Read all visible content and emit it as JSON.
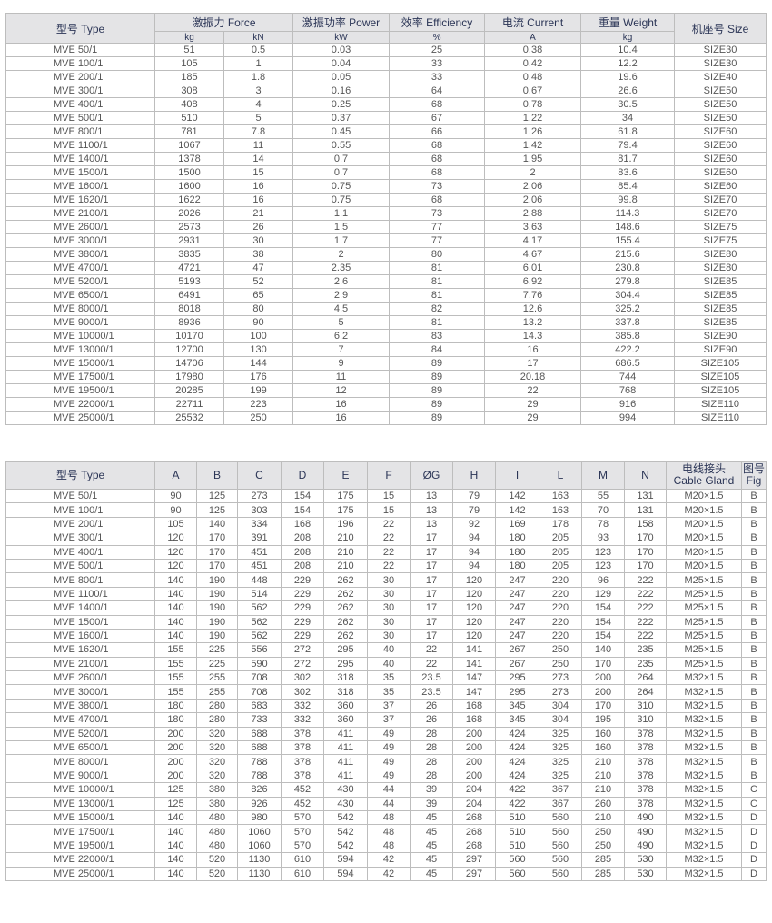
{
  "performance_table": {
    "headers": {
      "type": "型号 Type",
      "force": "激振力 Force",
      "power": "激振功率 Power",
      "efficiency": "效率 Efficiency",
      "current": "电流 Current",
      "weight": "重量 Weight",
      "size": "机座号 Size"
    },
    "units": [
      "kg",
      "kN",
      "kW",
      "%",
      "A",
      "kg"
    ],
    "rows": [
      [
        "MVE 50/1",
        "51",
        "0.5",
        "0.03",
        "25",
        "0.38",
        "10.4",
        "SIZE30"
      ],
      [
        "MVE 100/1",
        "105",
        "1",
        "0.04",
        "33",
        "0.42",
        "12.2",
        "SIZE30"
      ],
      [
        "MVE 200/1",
        "185",
        "1.8",
        "0.05",
        "33",
        "0.48",
        "19.6",
        "SIZE40"
      ],
      [
        "MVE 300/1",
        "308",
        "3",
        "0.16",
        "64",
        "0.67",
        "26.6",
        "SIZE50"
      ],
      [
        "MVE 400/1",
        "408",
        "4",
        "0.25",
        "68",
        "0.78",
        "30.5",
        "SIZE50"
      ],
      [
        "MVE 500/1",
        "510",
        "5",
        "0.37",
        "67",
        "1.22",
        "34",
        "SIZE50"
      ],
      [
        "MVE 800/1",
        "781",
        "7.8",
        "0.45",
        "66",
        "1.26",
        "61.8",
        "SIZE60"
      ],
      [
        "MVE 1100/1",
        "1067",
        "11",
        "0.55",
        "68",
        "1.42",
        "79.4",
        "SIZE60"
      ],
      [
        "MVE 1400/1",
        "1378",
        "14",
        "0.7",
        "68",
        "1.95",
        "81.7",
        "SIZE60"
      ],
      [
        "MVE 1500/1",
        "1500",
        "15",
        "0.7",
        "68",
        "2",
        "83.6",
        "SIZE60"
      ],
      [
        "MVE 1600/1",
        "1600",
        "16",
        "0.75",
        "73",
        "2.06",
        "85.4",
        "SIZE60"
      ],
      [
        "MVE 1620/1",
        "1622",
        "16",
        "0.75",
        "68",
        "2.06",
        "99.8",
        "SIZE70"
      ],
      [
        "MVE 2100/1",
        "2026",
        "21",
        "1.1",
        "73",
        "2.88",
        "114.3",
        "SIZE70"
      ],
      [
        "MVE 2600/1",
        "2573",
        "26",
        "1.5",
        "77",
        "3.63",
        "148.6",
        "SIZE75"
      ],
      [
        "MVE 3000/1",
        "2931",
        "30",
        "1.7",
        "77",
        "4.17",
        "155.4",
        "SIZE75"
      ],
      [
        "MVE 3800/1",
        "3835",
        "38",
        "2",
        "80",
        "4.67",
        "215.6",
        "SIZE80"
      ],
      [
        "MVE 4700/1",
        "4721",
        "47",
        "2.35",
        "81",
        "6.01",
        "230.8",
        "SIZE80"
      ],
      [
        "MVE 5200/1",
        "5193",
        "52",
        "2.6",
        "81",
        "6.92",
        "279.8",
        "SIZE85"
      ],
      [
        "MVE 6500/1",
        "6491",
        "65",
        "2.9",
        "81",
        "7.76",
        "304.4",
        "SIZE85"
      ],
      [
        "MVE 8000/1",
        "8018",
        "80",
        "4.5",
        "82",
        "12.6",
        "325.2",
        "SIZE85"
      ],
      [
        "MVE 9000/1",
        "8936",
        "90",
        "5",
        "81",
        "13.2",
        "337.8",
        "SIZE85"
      ],
      [
        "MVE 10000/1",
        "10170",
        "100",
        "6.2",
        "83",
        "14.3",
        "385.8",
        "SIZE90"
      ],
      [
        "MVE 13000/1",
        "12700",
        "130",
        "7",
        "84",
        "16",
        "422.2",
        "SIZE90"
      ],
      [
        "MVE 15000/1",
        "14706",
        "144",
        "9",
        "89",
        "17",
        "686.5",
        "SIZE105"
      ],
      [
        "MVE 17500/1",
        "17980",
        "176",
        "11",
        "89",
        "20.18",
        "744",
        "SIZE105"
      ],
      [
        "MVE 19500/1",
        "20285",
        "199",
        "12",
        "89",
        "22",
        "768",
        "SIZE105"
      ],
      [
        "MVE 22000/1",
        "22711",
        "223",
        "16",
        "89",
        "29",
        "916",
        "SIZE110"
      ],
      [
        "MVE 25000/1",
        "25532",
        "250",
        "16",
        "89",
        "29",
        "994",
        "SIZE110"
      ]
    ]
  },
  "dimensions_table": {
    "headers": [
      "型号 Type",
      "A",
      "B",
      "C",
      "D",
      "E",
      "F",
      "ØG",
      "H",
      "I",
      "L",
      "M",
      "N",
      "电线接头\nCable Gland",
      "图号\nFig"
    ],
    "rows": [
      [
        "MVE 50/1",
        "90",
        "125",
        "273",
        "154",
        "175",
        "15",
        "13",
        "79",
        "142",
        "163",
        "55",
        "131",
        "M20×1.5",
        "B"
      ],
      [
        "MVE 100/1",
        "90",
        "125",
        "303",
        "154",
        "175",
        "15",
        "13",
        "79",
        "142",
        "163",
        "70",
        "131",
        "M20×1.5",
        "B"
      ],
      [
        "MVE 200/1",
        "105",
        "140",
        "334",
        "168",
        "196",
        "22",
        "13",
        "92",
        "169",
        "178",
        "78",
        "158",
        "M20×1.5",
        "B"
      ],
      [
        "MVE 300/1",
        "120",
        "170",
        "391",
        "208",
        "210",
        "22",
        "17",
        "94",
        "180",
        "205",
        "93",
        "170",
        "M20×1.5",
        "B"
      ],
      [
        "MVE 400/1",
        "120",
        "170",
        "451",
        "208",
        "210",
        "22",
        "17",
        "94",
        "180",
        "205",
        "123",
        "170",
        "M20×1.5",
        "B"
      ],
      [
        "MVE 500/1",
        "120",
        "170",
        "451",
        "208",
        "210",
        "22",
        "17",
        "94",
        "180",
        "205",
        "123",
        "170",
        "M20×1.5",
        "B"
      ],
      [
        "MVE 800/1",
        "140",
        "190",
        "448",
        "229",
        "262",
        "30",
        "17",
        "120",
        "247",
        "220",
        "96",
        "222",
        "M25×1.5",
        "B"
      ],
      [
        "MVE 1100/1",
        "140",
        "190",
        "514",
        "229",
        "262",
        "30",
        "17",
        "120",
        "247",
        "220",
        "129",
        "222",
        "M25×1.5",
        "B"
      ],
      [
        "MVE 1400/1",
        "140",
        "190",
        "562",
        "229",
        "262",
        "30",
        "17",
        "120",
        "247",
        "220",
        "154",
        "222",
        "M25×1.5",
        "B"
      ],
      [
        "MVE 1500/1",
        "140",
        "190",
        "562",
        "229",
        "262",
        "30",
        "17",
        "120",
        "247",
        "220",
        "154",
        "222",
        "M25×1.5",
        "B"
      ],
      [
        "MVE 1600/1",
        "140",
        "190",
        "562",
        "229",
        "262",
        "30",
        "17",
        "120",
        "247",
        "220",
        "154",
        "222",
        "M25×1.5",
        "B"
      ],
      [
        "MVE 1620/1",
        "155",
        "225",
        "556",
        "272",
        "295",
        "40",
        "22",
        "141",
        "267",
        "250",
        "140",
        "235",
        "M25×1.5",
        "B"
      ],
      [
        "MVE 2100/1",
        "155",
        "225",
        "590",
        "272",
        "295",
        "40",
        "22",
        "141",
        "267",
        "250",
        "170",
        "235",
        "M25×1.5",
        "B"
      ],
      [
        "MVE 2600/1",
        "155",
        "255",
        "708",
        "302",
        "318",
        "35",
        "23.5",
        "147",
        "295",
        "273",
        "200",
        "264",
        "M32×1.5",
        "B"
      ],
      [
        "MVE 3000/1",
        "155",
        "255",
        "708",
        "302",
        "318",
        "35",
        "23.5",
        "147",
        "295",
        "273",
        "200",
        "264",
        "M32×1.5",
        "B"
      ],
      [
        "MVE 3800/1",
        "180",
        "280",
        "683",
        "332",
        "360",
        "37",
        "26",
        "168",
        "345",
        "304",
        "170",
        "310",
        "M32×1.5",
        "B"
      ],
      [
        "MVE 4700/1",
        "180",
        "280",
        "733",
        "332",
        "360",
        "37",
        "26",
        "168",
        "345",
        "304",
        "195",
        "310",
        "M32×1.5",
        "B"
      ],
      [
        "MVE 5200/1",
        "200",
        "320",
        "688",
        "378",
        "411",
        "49",
        "28",
        "200",
        "424",
        "325",
        "160",
        "378",
        "M32×1.5",
        "B"
      ],
      [
        "MVE 6500/1",
        "200",
        "320",
        "688",
        "378",
        "411",
        "49",
        "28",
        "200",
        "424",
        "325",
        "160",
        "378",
        "M32×1.5",
        "B"
      ],
      [
        "MVE 8000/1",
        "200",
        "320",
        "788",
        "378",
        "411",
        "49",
        "28",
        "200",
        "424",
        "325",
        "210",
        "378",
        "M32×1.5",
        "B"
      ],
      [
        "MVE 9000/1",
        "200",
        "320",
        "788",
        "378",
        "411",
        "49",
        "28",
        "200",
        "424",
        "325",
        "210",
        "378",
        "M32×1.5",
        "B"
      ],
      [
        "MVE 10000/1",
        "125",
        "380",
        "826",
        "452",
        "430",
        "44",
        "39",
        "204",
        "422",
        "367",
        "210",
        "378",
        "M32×1.5",
        "C"
      ],
      [
        "MVE 13000/1",
        "125",
        "380",
        "926",
        "452",
        "430",
        "44",
        "39",
        "204",
        "422",
        "367",
        "260",
        "378",
        "M32×1.5",
        "C"
      ],
      [
        "MVE 15000/1",
        "140",
        "480",
        "980",
        "570",
        "542",
        "48",
        "45",
        "268",
        "510",
        "560",
        "210",
        "490",
        "M32×1.5",
        "D"
      ],
      [
        "MVE 17500/1",
        "140",
        "480",
        "1060",
        "570",
        "542",
        "48",
        "45",
        "268",
        "510",
        "560",
        "250",
        "490",
        "M32×1.5",
        "D"
      ],
      [
        "MVE 19500/1",
        "140",
        "480",
        "1060",
        "570",
        "542",
        "48",
        "45",
        "268",
        "510",
        "560",
        "250",
        "490",
        "M32×1.5",
        "D"
      ],
      [
        "MVE 22000/1",
        "140",
        "520",
        "1130",
        "610",
        "594",
        "42",
        "45",
        "297",
        "560",
        "560",
        "285",
        "530",
        "M32×1.5",
        "D"
      ],
      [
        "MVE 25000/1",
        "140",
        "520",
        "1130",
        "610",
        "594",
        "42",
        "45",
        "297",
        "560",
        "560",
        "285",
        "530",
        "M32×1.5",
        "D"
      ]
    ]
  }
}
